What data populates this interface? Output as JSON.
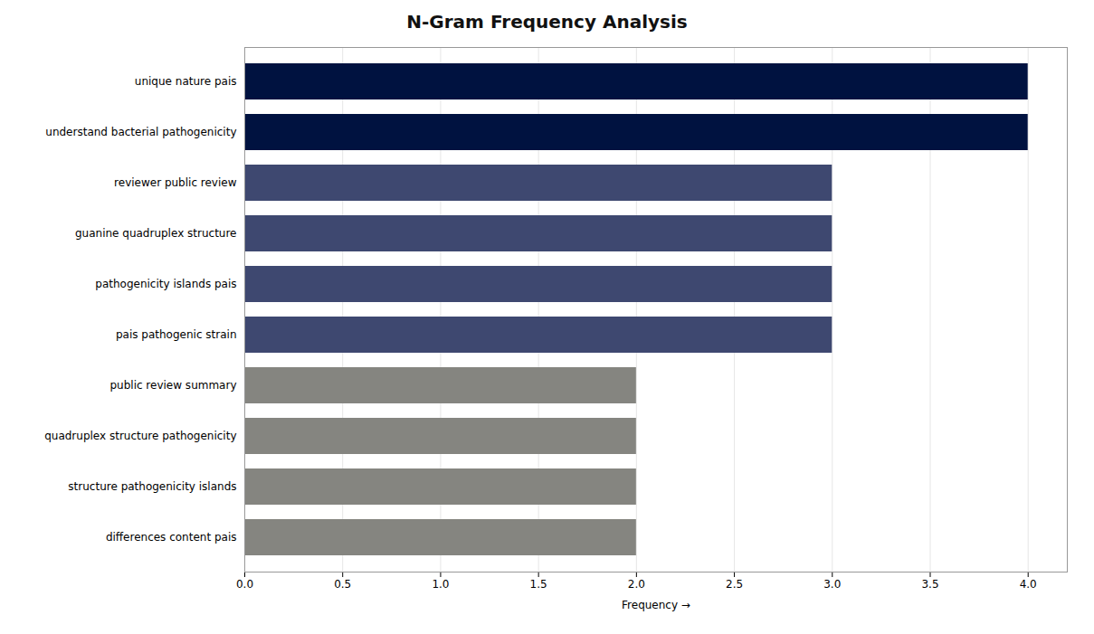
{
  "chart_data": {
    "type": "bar",
    "orientation": "horizontal",
    "title": "N-Gram Frequency Analysis",
    "xlabel": "Frequency",
    "categories": [
      "differences content pais",
      "structure pathogenicity islands",
      "quadruplex structure pathogenicity",
      "public review summary",
      "pais pathogenic strain",
      "pathogenicity islands pais",
      "guanine quadruplex structure",
      "reviewer public review",
      "understand bacterial pathogenicity",
      "unique nature pais"
    ],
    "values": [
      2,
      2,
      2,
      2,
      3,
      3,
      3,
      3,
      4,
      4
    ],
    "colors": [
      "#858580",
      "#858580",
      "#858580",
      "#858580",
      "#3e4870",
      "#3e4870",
      "#3e4870",
      "#3e4870",
      "#001240",
      "#001240"
    ],
    "xlim": [
      0,
      4.2
    ],
    "xticks": [
      {
        "value": 0,
        "label": "0.0"
      },
      0.5,
      {
        "value": 1,
        "label": "1.0"
      },
      1.5,
      {
        "value": 2,
        "label": "2.0"
      },
      2.5,
      {
        "value": 3,
        "label": "3.0"
      },
      3.5,
      {
        "value": 4,
        "label": "4.0"
      }
    ],
    "grid": true
  }
}
